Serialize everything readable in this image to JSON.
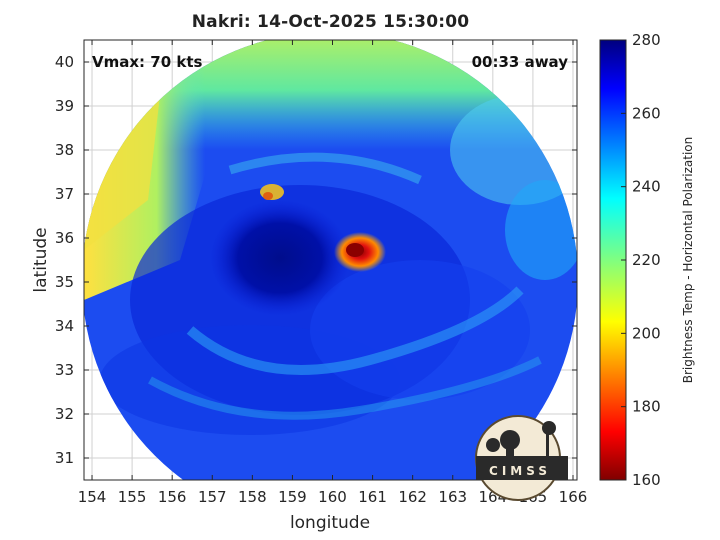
{
  "title": "Nakri: 14-Oct-2025 15:30:00",
  "vmax_label": "Vmax: 70 kts",
  "time_away": "00:33 away",
  "xlabel": "longitude",
  "ylabel": "latitude",
  "colorbar_label": "Brightness Temp - Horizontal Polarization",
  "logo_text": "CIMSS",
  "map": {
    "lon_range": [
      153.8,
      166.1
    ],
    "lat_range": [
      30.5,
      40.5
    ],
    "lon_ticks": [
      154,
      155,
      156,
      157,
      158,
      159,
      160,
      161,
      162,
      163,
      164,
      165,
      166
    ],
    "lat_ticks": [
      31,
      32,
      33,
      34,
      35,
      36,
      37,
      38,
      39,
      40
    ],
    "grid": true,
    "swath_center": [
      160.0,
      35.3
    ],
    "storm_center": [
      160.5,
      35.7
    ]
  },
  "colorbar": {
    "range": [
      160,
      280
    ],
    "ticks": [
      160,
      180,
      200,
      220,
      240,
      260,
      280
    ],
    "colormap": "jet",
    "orientation": "vertical",
    "placement": "right"
  },
  "colors": {
    "min": "#800000",
    "mid": "#ffff00",
    "max": "#00007f",
    "grid": "#d0d0d0"
  }
}
